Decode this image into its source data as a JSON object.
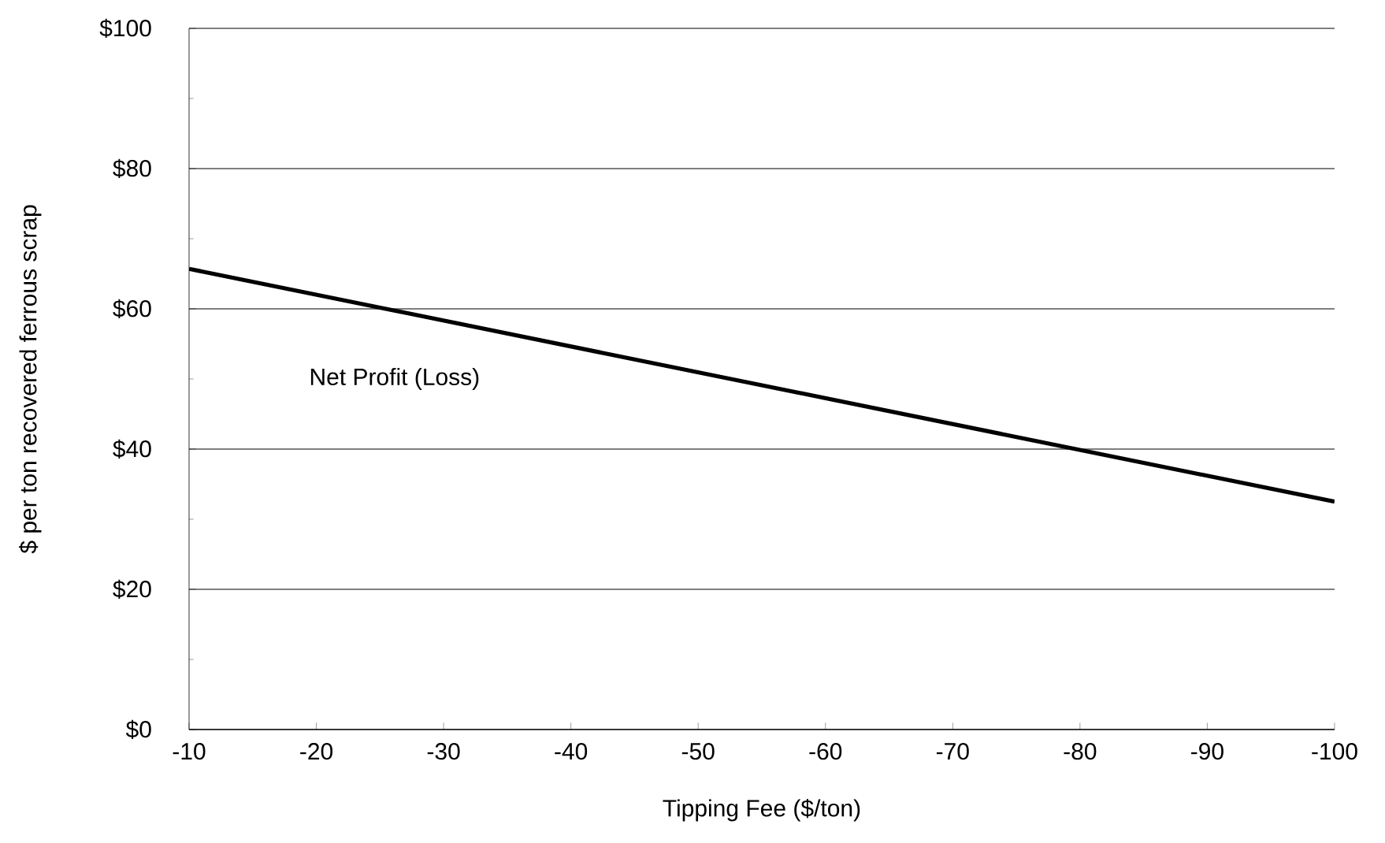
{
  "chart_data": {
    "type": "line",
    "xlabel": "Tipping Fee ($/ton)",
    "ylabel": "$ per ton recovered ferrous scrap",
    "x": [
      -10,
      -100
    ],
    "series": [
      {
        "name": "Net Profit (Loss)",
        "color": "#000000",
        "values": [
          65.7,
          32.5
        ]
      }
    ],
    "xlim": [
      -10,
      -100
    ],
    "xticks": [
      -10,
      -20,
      -30,
      -40,
      -50,
      -60,
      -70,
      -80,
      -90,
      -100
    ],
    "ylim": [
      0,
      100
    ],
    "yticks": [
      {
        "value": 0,
        "label": "$0"
      },
      {
        "value": 10,
        "label": null
      },
      {
        "value": 20,
        "label": "$20"
      },
      {
        "value": 30,
        "label": null
      },
      {
        "value": 40,
        "label": "$40"
      },
      {
        "value": 50,
        "label": null
      },
      {
        "value": 60,
        "label": "$60"
      },
      {
        "value": 70,
        "label": null
      },
      {
        "value": 80,
        "label": "$80"
      },
      {
        "value": 90,
        "label": null
      },
      {
        "value": 100,
        "label": "$100"
      }
    ],
    "grid": "y",
    "marker": "none",
    "line_style": "solid"
  }
}
